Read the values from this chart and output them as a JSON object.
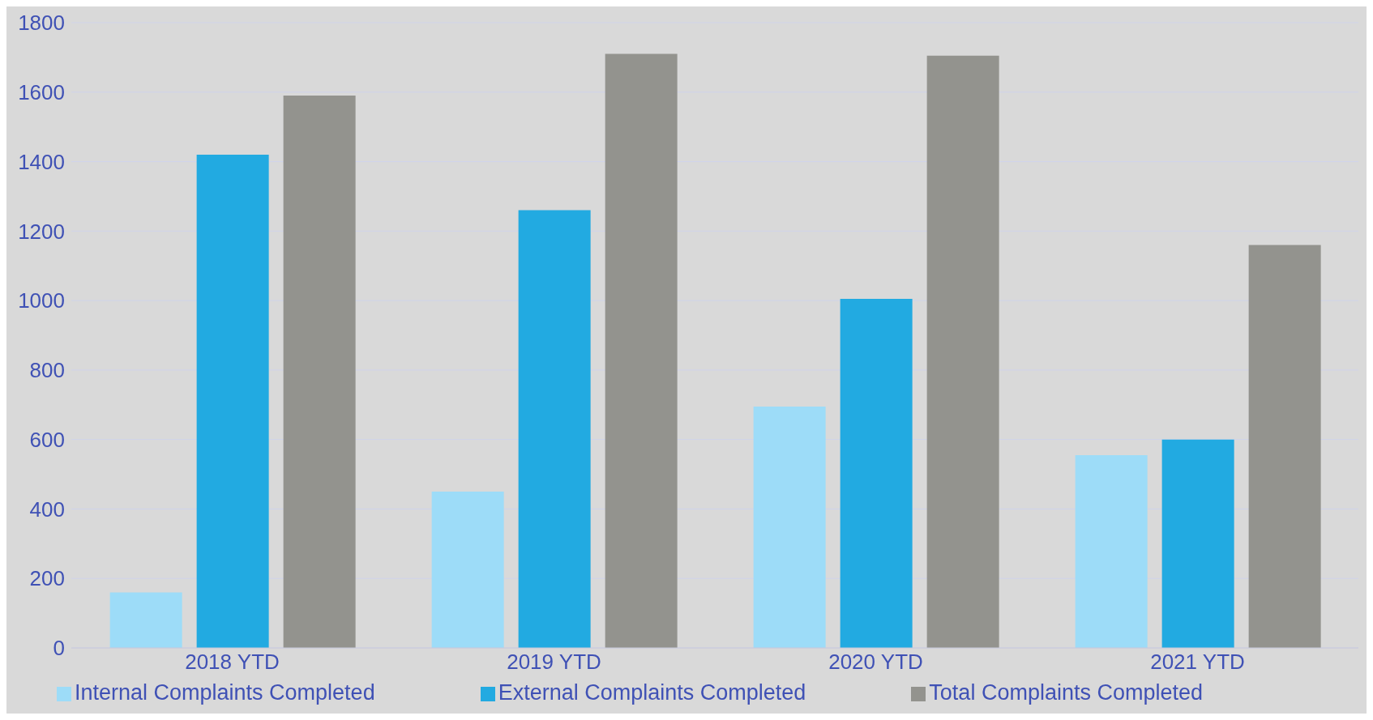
{
  "chart_data": {
    "type": "bar",
    "categories": [
      "2018 YTD",
      "2019 YTD",
      "2020 YTD",
      "2021 YTD"
    ],
    "series": [
      {
        "name": "Internal Complaints Completed",
        "color": "#9ddcf8",
        "values": [
          160,
          450,
          695,
          555
        ]
      },
      {
        "name": "External Complaints Completed",
        "color": "#22aae1",
        "values": [
          1420,
          1260,
          1005,
          600
        ]
      },
      {
        "name": "Total Complaints Completed",
        "color": "#93938e",
        "values": [
          1590,
          1710,
          1705,
          1160
        ]
      }
    ],
    "ylim": [
      0,
      1800
    ],
    "yticks": [
      0,
      200,
      400,
      600,
      800,
      1000,
      1200,
      1400,
      1600,
      1800
    ],
    "grid": "y",
    "legend": "bottom"
  }
}
